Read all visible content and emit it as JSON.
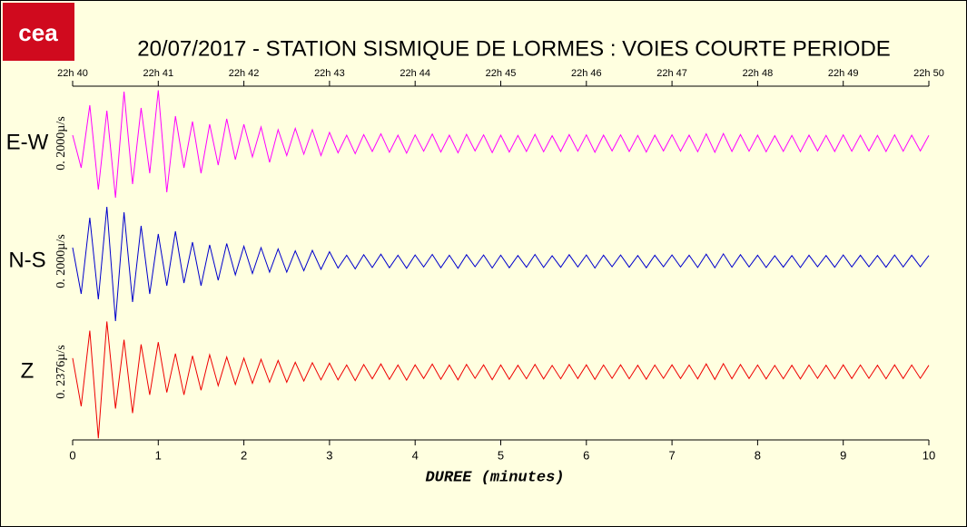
{
  "logo": "cea",
  "chart_data": {
    "type": "line",
    "title": "20/07/2017  -  STATION SISMIQUE DE LORMES : VOIES COURTE PERIODE",
    "x_label": "DUREE (minutes)",
    "xlim": [
      0,
      10
    ],
    "xticks": [
      0,
      1,
      2,
      3,
      4,
      5,
      6,
      7,
      8,
      9,
      10
    ],
    "x2ticks": [
      {
        "value": 0,
        "label": "22h 40"
      },
      {
        "value": 1,
        "label": "22h 41"
      },
      {
        "value": 2,
        "label": "22h 42"
      },
      {
        "value": 3,
        "label": "22h 43"
      },
      {
        "value": 4,
        "label": "22h 44"
      },
      {
        "value": 5,
        "label": "22h 45"
      },
      {
        "value": 6,
        "label": "22h 46"
      },
      {
        "value": 7,
        "label": "22h 47"
      },
      {
        "value": 8,
        "label": "22h 48"
      },
      {
        "value": 9,
        "label": "22h 49"
      },
      {
        "value": 10,
        "label": "22h 50"
      }
    ],
    "x": [
      0,
      0.1,
      0.2,
      0.3,
      0.4,
      0.5,
      0.6,
      0.7,
      0.8,
      0.9,
      1,
      1.1,
      1.2,
      1.3,
      1.4,
      1.5,
      1.6,
      1.7,
      1.8,
      1.9,
      2,
      2.1,
      2.2,
      2.3,
      2.4,
      2.5,
      2.6,
      2.7,
      2.8,
      2.9,
      3,
      3.1,
      3.2,
      3.3,
      3.4,
      3.5,
      3.6,
      3.7,
      3.8,
      3.9,
      4,
      4.1,
      4.2,
      4.3,
      4.4,
      4.5,
      4.6,
      4.7,
      4.8,
      4.9,
      5,
      5.1,
      5.2,
      5.3,
      5.4,
      5.5,
      5.6,
      5.7,
      5.8,
      5.9,
      6,
      6.1,
      6.2,
      6.3,
      6.4,
      6.5,
      6.6,
      6.7,
      6.8,
      6.9,
      7,
      7.1,
      7.2,
      7.3,
      7.4,
      7.5,
      7.6,
      7.7,
      7.8,
      7.9,
      8,
      8.1,
      8.2,
      8.3,
      8.4,
      8.5,
      8.6,
      8.7,
      8.8,
      8.9,
      9,
      9.1,
      9.2,
      9.3,
      9.4,
      9.5,
      9.6,
      9.7,
      9.8,
      9.9,
      10
    ],
    "series": [
      {
        "name": "E-W",
        "scale_label": "0. 2000µ/s",
        "color": "#ff00ff",
        "ylim": [
          -2000,
          2000
        ],
        "values": [
          300,
          -900,
          1400,
          -1700,
          1200,
          -2000,
          1900,
          -1500,
          1300,
          -1100,
          1950,
          -1800,
          1000,
          -900,
          800,
          -1100,
          700,
          -800,
          900,
          -600,
          700,
          -500,
          600,
          -700,
          500,
          -450,
          550,
          -400,
          500,
          -450,
          400,
          -350,
          300,
          -380,
          320,
          -300,
          350,
          -330,
          300,
          -360,
          310,
          -290,
          340,
          -320,
          300,
          -350,
          330,
          -280,
          310,
          -340,
          300,
          -320,
          290,
          -300,
          330,
          -310,
          280,
          -300,
          320,
          -290,
          310,
          -330,
          300,
          -280,
          310,
          -300,
          290,
          -320,
          300,
          -280,
          310,
          -290,
          300,
          -310,
          350,
          -330,
          360,
          -300,
          320,
          -290,
          300,
          -310,
          280,
          -300,
          290,
          -310,
          300,
          -280,
          290,
          -300,
          310,
          -290,
          300,
          -280,
          290,
          -300,
          310,
          -290,
          300,
          -280,
          290
        ]
      },
      {
        "name": "N-S",
        "scale_label": "0. 2000µ/s",
        "color": "#0000cc",
        "ylim": [
          -2000,
          2000
        ],
        "values": [
          500,
          -1200,
          1600,
          -1400,
          2000,
          -2200,
          1800,
          -1500,
          1300,
          -1200,
          1000,
          -900,
          1100,
          -800,
          700,
          -900,
          600,
          -700,
          650,
          -500,
          550,
          -450,
          500,
          -400,
          450,
          -400,
          380,
          -350,
          400,
          -300,
          350,
          -250,
          220,
          -280,
          240,
          -230,
          260,
          -240,
          220,
          -260,
          230,
          -210,
          250,
          -240,
          220,
          -260,
          240,
          -200,
          230,
          -250,
          220,
          -240,
          210,
          -220,
          250,
          -230,
          200,
          -220,
          240,
          -210,
          230,
          -250,
          220,
          -200,
          230,
          -220,
          210,
          -240,
          220,
          -200,
          230,
          -210,
          220,
          -230,
          260,
          -240,
          270,
          -220,
          240,
          -210,
          220,
          -230,
          200,
          -220,
          210,
          -230,
          220,
          -200,
          210,
          -220,
          230,
          -210,
          220,
          -200,
          210,
          -220,
          230,
          -210,
          220,
          -200,
          210
        ]
      },
      {
        "name": "Z",
        "scale_label": "0. 2376µ/s",
        "color": "#ee0000",
        "ylim": [
          -2376,
          2376
        ],
        "values": [
          600,
          -1500,
          1800,
          -2900,
          2200,
          -1600,
          1400,
          -1800,
          1200,
          -1000,
          1300,
          -900,
          800,
          -1000,
          700,
          -800,
          750,
          -600,
          650,
          -550,
          600,
          -500,
          550,
          -450,
          500,
          -450,
          420,
          -400,
          400,
          -350,
          380,
          -350,
          300,
          -380,
          320,
          -300,
          350,
          -330,
          300,
          -360,
          310,
          -290,
          340,
          -320,
          300,
          -350,
          330,
          -280,
          310,
          -340,
          300,
          -320,
          290,
          -300,
          330,
          -310,
          280,
          -300,
          320,
          -290,
          310,
          -330,
          300,
          -280,
          310,
          -300,
          290,
          -320,
          300,
          -280,
          310,
          -290,
          300,
          -310,
          350,
          -330,
          360,
          -300,
          320,
          -290,
          300,
          -310,
          280,
          -300,
          290,
          -310,
          300,
          -280,
          290,
          -300,
          310,
          -290,
          300,
          -280,
          290,
          -300,
          310,
          -290,
          300,
          -280,
          290
        ]
      }
    ]
  }
}
